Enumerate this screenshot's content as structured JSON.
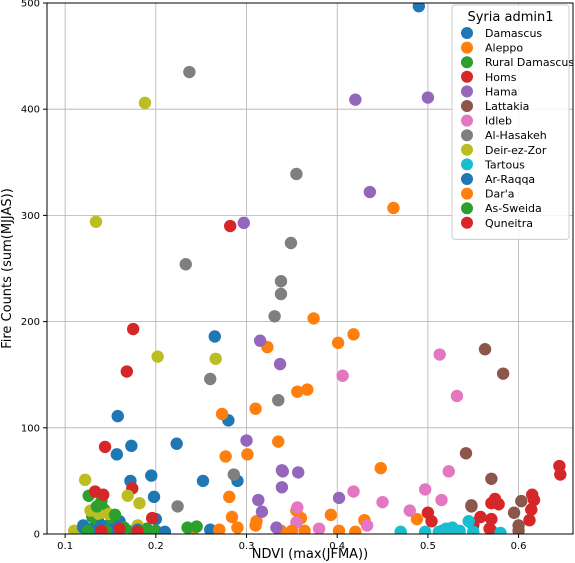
{
  "chart_data": {
    "type": "scatter",
    "xlabel": "NDVI (max(JFMA))",
    "ylabel": "Fire Counts (sum(MJJAS))",
    "xlim": [
      0.08,
      0.66
    ],
    "ylim": [
      0,
      500
    ],
    "xticks": [
      0.1,
      0.2,
      0.3,
      0.4,
      0.5,
      0.6
    ],
    "xtick_labels": [
      "0.1",
      "0.2",
      "0.3",
      "0.4",
      "0.5",
      "0.6"
    ],
    "yticks": [
      0,
      100,
      200,
      300,
      400,
      500
    ],
    "ytick_labels": [
      "0",
      "100",
      "200",
      "300",
      "400",
      "500"
    ],
    "grid": true,
    "legend": {
      "title": "Syria admin1",
      "placement": "top-right"
    },
    "series": [
      {
        "name": "Damascus",
        "color": "#1f77b4",
        "points": [
          [
            0.49,
            497
          ],
          [
            0.265,
            186
          ],
          [
            0.158,
            111
          ],
          [
            0.173,
            83
          ],
          [
            0.223,
            85
          ],
          [
            0.157,
            75
          ],
          [
            0.195,
            55
          ],
          [
            0.172,
            50
          ],
          [
            0.252,
            50
          ],
          [
            0.198,
            35
          ],
          [
            0.28,
            107
          ],
          [
            0.29,
            50
          ],
          [
            0.15,
            10
          ],
          [
            0.13,
            5
          ],
          [
            0.12,
            8
          ],
          [
            0.2,
            14
          ],
          [
            0.26,
            4
          ],
          [
            0.55,
            8
          ],
          [
            0.57,
            3
          ]
        ]
      },
      {
        "name": "Aleppo",
        "color": "#ff7f0e",
        "points": [
          [
            0.462,
            307
          ],
          [
            0.374,
            203
          ],
          [
            0.418,
            188
          ],
          [
            0.401,
            180
          ],
          [
            0.323,
            176
          ],
          [
            0.367,
            136
          ],
          [
            0.356,
            134
          ],
          [
            0.31,
            118
          ],
          [
            0.273,
            113
          ],
          [
            0.277,
            73
          ],
          [
            0.301,
            75
          ],
          [
            0.335,
            87
          ],
          [
            0.448,
            62
          ],
          [
            0.281,
            35
          ],
          [
            0.284,
            16
          ],
          [
            0.311,
            12
          ],
          [
            0.355,
            22
          ],
          [
            0.36,
            15
          ],
          [
            0.43,
            13
          ],
          [
            0.488,
            14
          ],
          [
            0.393,
            18
          ],
          [
            0.338,
            3
          ],
          [
            0.364,
            3
          ],
          [
            0.402,
            3
          ],
          [
            0.24,
            2
          ]
        ]
      },
      {
        "name": "Rural Damascus",
        "color": "#2ca02c",
        "points": [
          [
            0.126,
            36
          ],
          [
            0.14,
            31
          ],
          [
            0.143,
            23
          ],
          [
            0.13,
            16
          ],
          [
            0.136,
            13
          ],
          [
            0.19,
            5
          ],
          [
            0.175,
            3
          ],
          [
            0.235,
            6
          ],
          [
            0.245,
            7
          ],
          [
            0.16,
            2
          ],
          [
            0.2,
            3
          ],
          [
            0.15,
            10
          ]
        ]
      },
      {
        "name": "Homs",
        "color": "#d62728",
        "points": [
          [
            0.282,
            290
          ],
          [
            0.175,
            193
          ],
          [
            0.168,
            153
          ],
          [
            0.144,
            82
          ],
          [
            0.174,
            43
          ],
          [
            0.133,
            40
          ],
          [
            0.142,
            37
          ],
          [
            0.196,
            15
          ],
          [
            0.645,
            64
          ],
          [
            0.646,
            56
          ],
          [
            0.615,
            37
          ],
          [
            0.617,
            32
          ],
          [
            0.614,
            23
          ],
          [
            0.612,
            13
          ],
          [
            0.574,
            33
          ],
          [
            0.57,
            29
          ],
          [
            0.578,
            28
          ],
          [
            0.558,
            16
          ],
          [
            0.55,
            10
          ],
          [
            0.57,
            14
          ],
          [
            0.568,
            5
          ],
          [
            0.5,
            20
          ],
          [
            0.504,
            12
          ],
          [
            0.516,
            3
          ]
        ]
      },
      {
        "name": "Hama",
        "color": "#9467bd",
        "points": [
          [
            0.42,
            409
          ],
          [
            0.5,
            411
          ],
          [
            0.436,
            322
          ],
          [
            0.297,
            293
          ],
          [
            0.315,
            182
          ],
          [
            0.337,
            160
          ],
          [
            0.3,
            88
          ],
          [
            0.339,
            60
          ],
          [
            0.34,
            59
          ],
          [
            0.357,
            58
          ],
          [
            0.339,
            44
          ],
          [
            0.313,
            32
          ],
          [
            0.402,
            34
          ],
          [
            0.317,
            21
          ],
          [
            0.333,
            6
          ]
        ]
      },
      {
        "name": "Lattakia",
        "color": "#8c564b",
        "points": [
          [
            0.563,
            174
          ],
          [
            0.583,
            151
          ],
          [
            0.542,
            76
          ],
          [
            0.57,
            52
          ],
          [
            0.548,
            26
          ],
          [
            0.548,
            27
          ],
          [
            0.603,
            31
          ],
          [
            0.595,
            20
          ],
          [
            0.6,
            8
          ],
          [
            0.6,
            3
          ]
        ]
      },
      {
        "name": "Idleb",
        "color": "#e377c2",
        "points": [
          [
            0.513,
            169
          ],
          [
            0.532,
            130
          ],
          [
            0.406,
            149
          ],
          [
            0.523,
            59
          ],
          [
            0.515,
            32
          ],
          [
            0.497,
            42
          ],
          [
            0.418,
            40
          ],
          [
            0.45,
            30
          ],
          [
            0.433,
            8
          ],
          [
            0.48,
            22
          ],
          [
            0.356,
            25
          ],
          [
            0.38,
            5
          ],
          [
            0.355,
            11
          ]
        ]
      },
      {
        "name": "Al-Hasakeh",
        "color": "#7f7f7f",
        "points": [
          [
            0.237,
            435
          ],
          [
            0.355,
            339
          ],
          [
            0.349,
            274
          ],
          [
            0.233,
            254
          ],
          [
            0.338,
            238
          ],
          [
            0.338,
            226
          ],
          [
            0.331,
            205
          ],
          [
            0.26,
            146
          ],
          [
            0.335,
            126
          ],
          [
            0.286,
            56
          ],
          [
            0.224,
            26
          ]
        ]
      },
      {
        "name": "Deir-ez-Zor",
        "color": "#bcbd22",
        "points": [
          [
            0.188,
            406
          ],
          [
            0.134,
            294
          ],
          [
            0.202,
            167
          ],
          [
            0.266,
            165
          ],
          [
            0.122,
            51
          ],
          [
            0.169,
            36
          ],
          [
            0.182,
            29
          ],
          [
            0.137,
            19
          ],
          [
            0.148,
            19
          ],
          [
            0.128,
            22
          ],
          [
            0.11,
            3
          ],
          [
            0.18,
            8
          ]
        ]
      },
      {
        "name": "Tartous",
        "color": "#17becf",
        "points": [
          [
            0.52,
            5
          ],
          [
            0.527,
            6
          ],
          [
            0.535,
            3
          ],
          [
            0.545,
            12
          ],
          [
            0.497,
            2
          ],
          [
            0.512,
            2
          ],
          [
            0.55,
            2
          ],
          [
            0.58,
            1
          ],
          [
            0.47,
            2
          ]
        ]
      },
      {
        "name": "Ar-Raqqa",
        "color": "#1f77b4",
        "points": [
          [
            0.12,
            6
          ],
          [
            0.14,
            8
          ],
          [
            0.16,
            12
          ],
          [
            0.18,
            4
          ],
          [
            0.21,
            2
          ],
          [
            0.15,
            4
          ]
        ]
      },
      {
        "name": "Dar'a",
        "color": "#ff7f0e",
        "points": [
          [
            0.31,
            8
          ],
          [
            0.29,
            6
          ],
          [
            0.35,
            3
          ],
          [
            0.27,
            4
          ],
          [
            0.42,
            2
          ]
        ]
      },
      {
        "name": "As-Sweida",
        "color": "#2ca02c",
        "points": [
          [
            0.135,
            26
          ],
          [
            0.155,
            18
          ],
          [
            0.145,
            3
          ],
          [
            0.165,
            6
          ],
          [
            0.185,
            3
          ],
          [
            0.125,
            3
          ]
        ]
      },
      {
        "name": "Quneitra",
        "color": "#d62728",
        "points": [
          [
            0.14,
            3
          ],
          [
            0.16,
            5
          ],
          [
            0.18,
            2
          ]
        ]
      }
    ]
  }
}
